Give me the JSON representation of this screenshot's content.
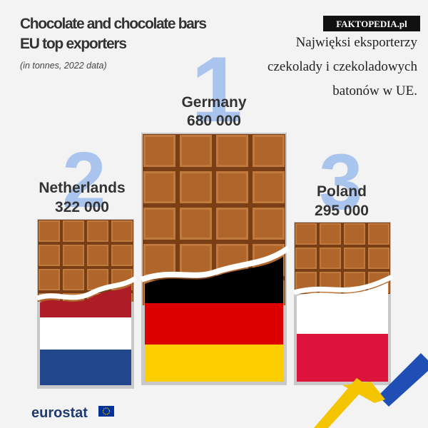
{
  "title_lines": [
    "Chocolate and chocolate bars",
    "EU top exporters"
  ],
  "subtitle": "(in tonnes, 2022 data)",
  "badge": "FAKTOPEDIA.pl",
  "caption_lines": [
    "Najwięksi eksporterzy",
    "czekolady i czekoladowych",
    "batonów w UE."
  ],
  "podium": [
    {
      "rank": "1",
      "country": "Germany",
      "value": "680 000"
    },
    {
      "rank": "2",
      "country": "Netherlands",
      "value": "322 000"
    },
    {
      "rank": "3",
      "country": "Poland",
      "value": "295 000"
    }
  ],
  "logo": "eurostat"
}
